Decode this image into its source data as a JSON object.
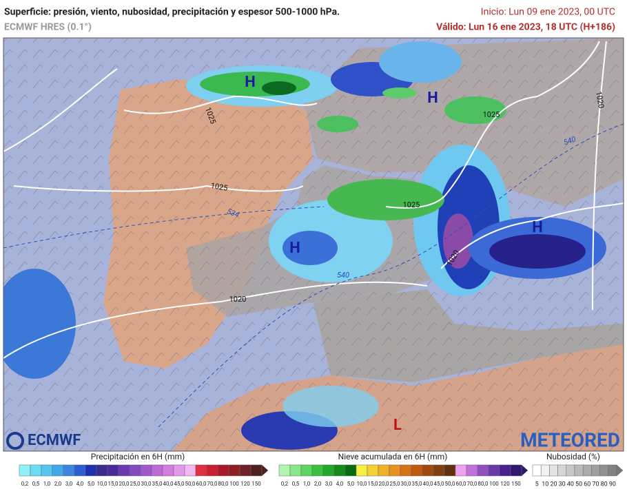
{
  "header": {
    "title": "Superficie: presión, viento, nubosidad, precipitación y espesor 500-1000 hPa.",
    "model": "ECMWF HRES (0.1°)",
    "init": "Inicio: Lun 09 ene 2023, 00 UTC",
    "valid": "Válido: Lun 16 ene 2023, 18 UTC (H+186)"
  },
  "map": {
    "pressure_centers": [
      "H",
      "H",
      "H",
      "H",
      "L"
    ],
    "isobar_labels": [
      "1025",
      "1025",
      "1025",
      "1025",
      "1020",
      "1020",
      "1020"
    ],
    "thickness_labels": [
      "534",
      "540",
      "540"
    ]
  },
  "logos": {
    "left": "ECMWF",
    "right": "METEORED"
  },
  "legends": [
    {
      "title": "Precipitación en 6H (mm)",
      "labels": [
        "0,2",
        "0,5",
        "1,0",
        "2,0",
        "3,0",
        "4,0",
        "5,0",
        "10,0",
        "15,0",
        "20,0",
        "25,0",
        "30,0",
        "35,0",
        "40,0",
        "45,0",
        "50,0",
        "60,0",
        "70,0",
        "80,0",
        "100",
        "120",
        "150"
      ]
    },
    {
      "title": "Nieve acumulada en 6H (mm)",
      "labels": [
        "0,2",
        "0,5",
        "1,0",
        "2,0",
        "3,0",
        "4,0",
        "5,0",
        "10,0",
        "15,0",
        "20,0",
        "25,0",
        "30,0",
        "35,0",
        "40,0",
        "45,0",
        "50,0",
        "60,0",
        "70,0",
        "80,0",
        "100",
        "120",
        "150"
      ]
    },
    {
      "title": "Nubosidad (%)",
      "labels": [
        "5",
        "10",
        "20",
        "30",
        "40",
        "50",
        "60",
        "70",
        "80",
        "90"
      ]
    }
  ]
}
